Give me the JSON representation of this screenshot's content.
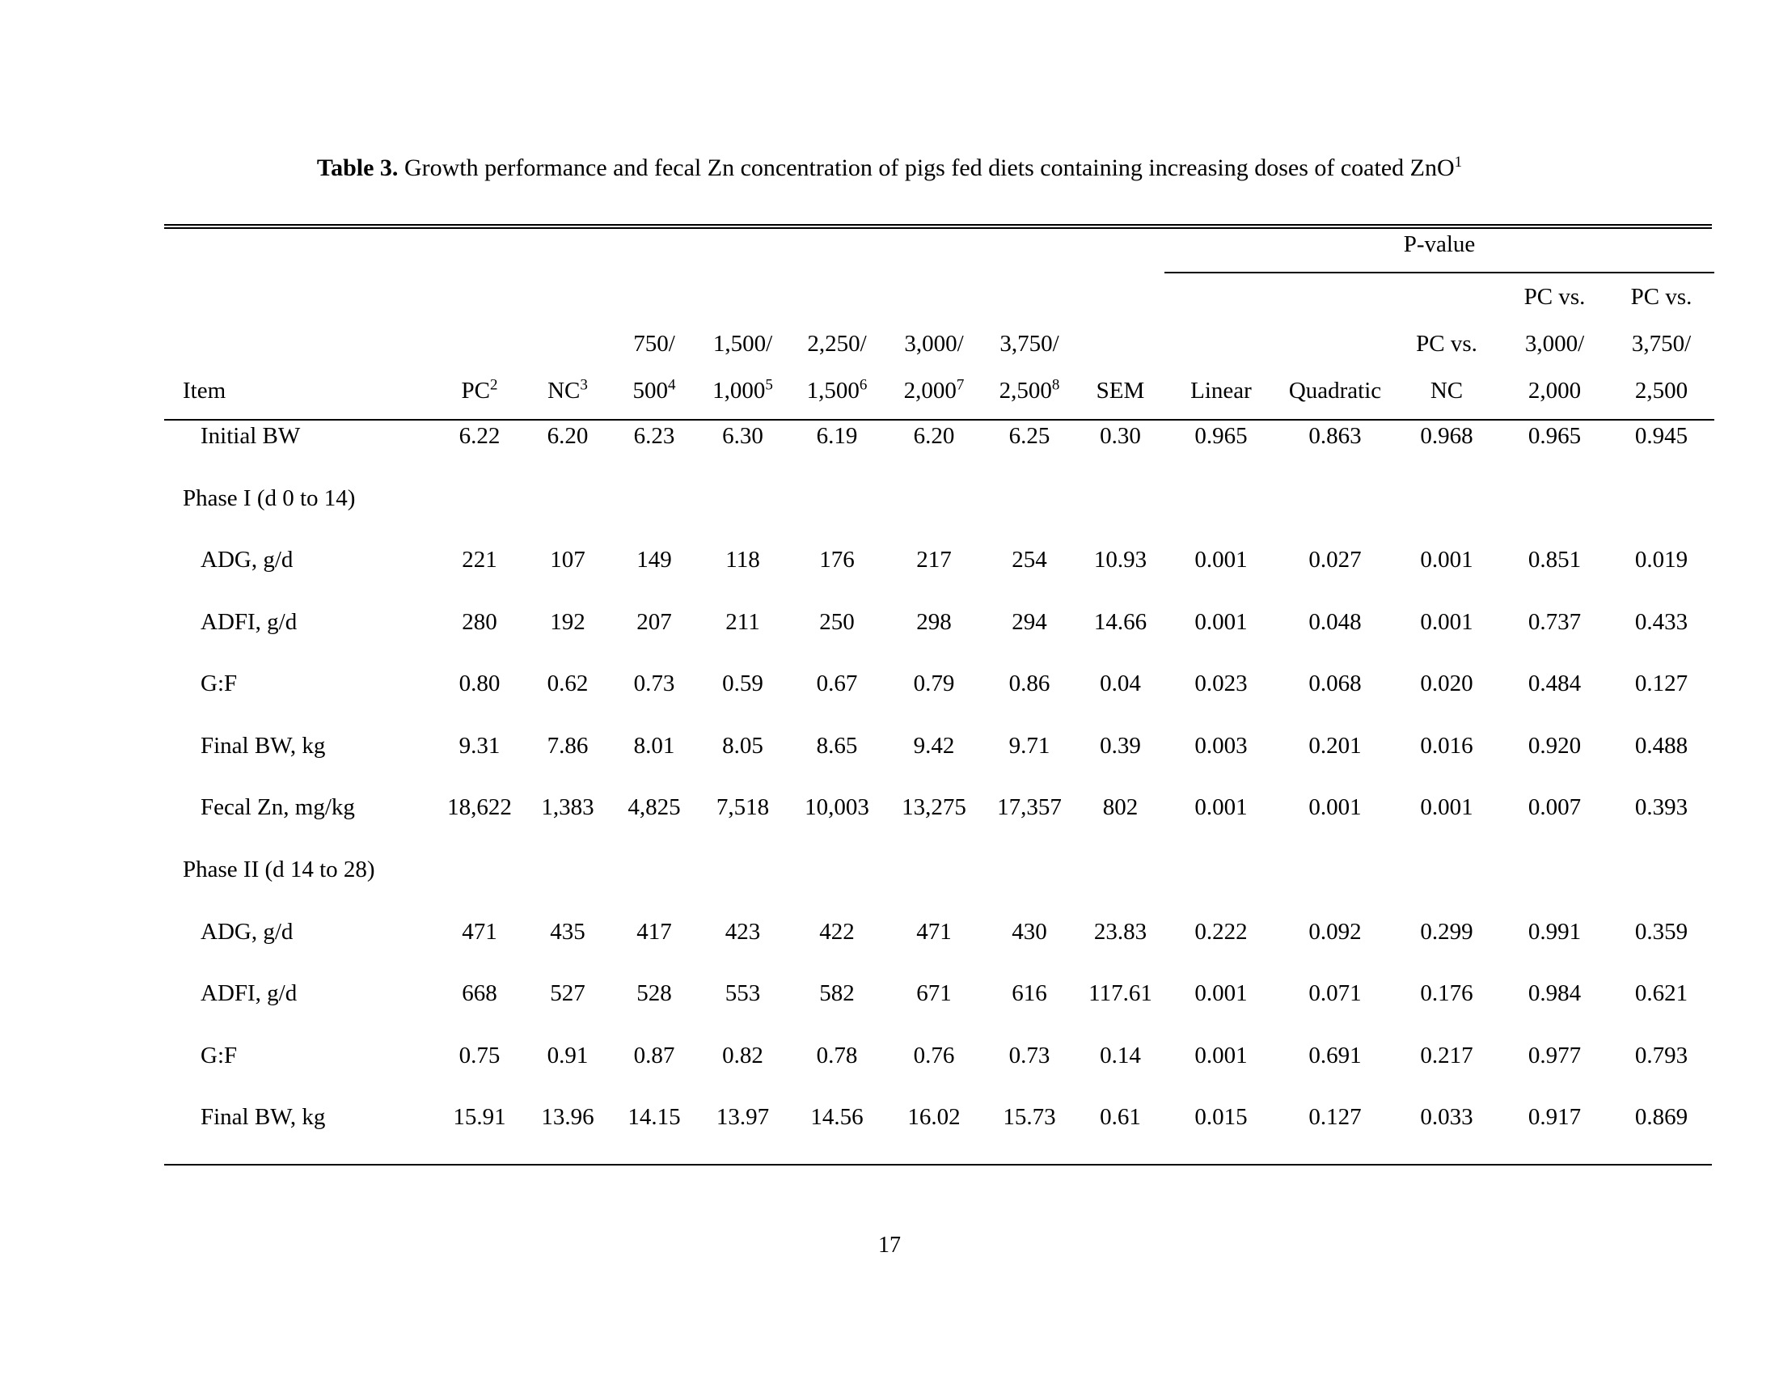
{
  "title": {
    "label": "Table 3.",
    "text": " Growth performance and fecal Zn concentration of pigs fed diets containing increasing doses of coated ZnO",
    "footnote_mark": "1"
  },
  "table": {
    "pvalue_label": "P-value",
    "columns": [
      {
        "id": "item",
        "align": "left",
        "lines": [
          {
            "text": "Item"
          }
        ]
      },
      {
        "id": "pc",
        "lines": [
          {
            "text": "PC",
            "sup": "2"
          }
        ]
      },
      {
        "id": "nc",
        "lines": [
          {
            "text": "NC",
            "sup": "3"
          }
        ]
      },
      {
        "id": "dose-750-500",
        "lines": [
          {
            "text": "750/"
          },
          {
            "text": "500",
            "sup": "4"
          }
        ]
      },
      {
        "id": "dose-1500-1000",
        "lines": [
          {
            "text": "1,500/"
          },
          {
            "text": "1,000",
            "sup": "5"
          }
        ]
      },
      {
        "id": "dose-2250-1500",
        "lines": [
          {
            "text": "2,250/"
          },
          {
            "text": "1,500",
            "sup": "6"
          }
        ]
      },
      {
        "id": "dose-3000-2000",
        "lines": [
          {
            "text": "3,000/"
          },
          {
            "text": "2,000",
            "sup": "7"
          }
        ]
      },
      {
        "id": "dose-3750-2500",
        "lines": [
          {
            "text": "3,750/"
          },
          {
            "text": "2,500",
            "sup": "8"
          }
        ]
      },
      {
        "id": "sem",
        "lines": [
          {
            "text": "SEM"
          }
        ]
      },
      {
        "id": "linear",
        "lines": [
          {
            "text": "Linear"
          }
        ]
      },
      {
        "id": "quadratic",
        "lines": [
          {
            "text": "Quadratic"
          }
        ]
      },
      {
        "id": "pc-vs-nc",
        "lines": [
          {
            "text": "PC vs."
          },
          {
            "text": "NC"
          }
        ]
      },
      {
        "id": "pc-vs-3000-2000",
        "lines": [
          {
            "text": "PC vs."
          },
          {
            "text": "3,000/"
          },
          {
            "text": "2,000"
          }
        ]
      },
      {
        "id": "pc-vs-3750-2500",
        "lines": [
          {
            "text": "PC vs."
          },
          {
            "text": "3,750/"
          },
          {
            "text": "2,500"
          }
        ]
      }
    ],
    "rows": [
      {
        "section": false,
        "indent": true,
        "label": "Initial BW",
        "values": [
          "6.22",
          "6.20",
          "6.23",
          "6.30",
          "6.19",
          "6.20",
          "6.25",
          "0.30",
          "0.965",
          "0.863",
          "0.968",
          "0.965",
          "0.945"
        ]
      },
      {
        "section": true,
        "indent": false,
        "label": "Phase I (d 0 to 14)",
        "values": []
      },
      {
        "section": false,
        "indent": true,
        "label": "ADG, g/d",
        "values": [
          "221",
          "107",
          "149",
          "118",
          "176",
          "217",
          "254",
          "10.93",
          "0.001",
          "0.027",
          "0.001",
          "0.851",
          "0.019"
        ]
      },
      {
        "section": false,
        "indent": true,
        "label": "ADFI, g/d",
        "values": [
          "280",
          "192",
          "207",
          "211",
          "250",
          "298",
          "294",
          "14.66",
          "0.001",
          "0.048",
          "0.001",
          "0.737",
          "0.433"
        ]
      },
      {
        "section": false,
        "indent": true,
        "label": "G:F",
        "values": [
          "0.80",
          "0.62",
          "0.73",
          "0.59",
          "0.67",
          "0.79",
          "0.86",
          "0.04",
          "0.023",
          "0.068",
          "0.020",
          "0.484",
          "0.127"
        ]
      },
      {
        "section": false,
        "indent": true,
        "label": "Final BW, kg",
        "values": [
          "9.31",
          "7.86",
          "8.01",
          "8.05",
          "8.65",
          "9.42",
          "9.71",
          "0.39",
          "0.003",
          "0.201",
          "0.016",
          "0.920",
          "0.488"
        ]
      },
      {
        "section": false,
        "indent": true,
        "label": "Fecal Zn, mg/kg",
        "values": [
          "18,622",
          "1,383",
          "4,825",
          "7,518",
          "10,003",
          "13,275",
          "17,357",
          "802",
          "0.001",
          "0.001",
          "0.001",
          "0.007",
          "0.393"
        ]
      },
      {
        "section": true,
        "indent": false,
        "label": "Phase II (d 14 to 28)",
        "values": []
      },
      {
        "section": false,
        "indent": true,
        "label": "ADG, g/d",
        "values": [
          "471",
          "435",
          "417",
          "423",
          "422",
          "471",
          "430",
          "23.83",
          "0.222",
          "0.092",
          "0.299",
          "0.991",
          "0.359"
        ]
      },
      {
        "section": false,
        "indent": true,
        "label": "ADFI, g/d",
        "values": [
          "668",
          "527",
          "528",
          "553",
          "582",
          "671",
          "616",
          "117.61",
          "0.001",
          "0.071",
          "0.176",
          "0.984",
          "0.621"
        ]
      },
      {
        "section": false,
        "indent": true,
        "label": "G:F",
        "values": [
          "0.75",
          "0.91",
          "0.87",
          "0.82",
          "0.78",
          "0.76",
          "0.73",
          "0.14",
          "0.001",
          "0.691",
          "0.217",
          "0.977",
          "0.793"
        ]
      },
      {
        "section": false,
        "indent": true,
        "label": "Final BW, kg",
        "values": [
          "15.91",
          "13.96",
          "14.15",
          "13.97",
          "14.56",
          "16.02",
          "15.73",
          "0.61",
          "0.015",
          "0.127",
          "0.033",
          "0.917",
          "0.869"
        ]
      }
    ]
  },
  "footer": {
    "page_number": "17"
  }
}
